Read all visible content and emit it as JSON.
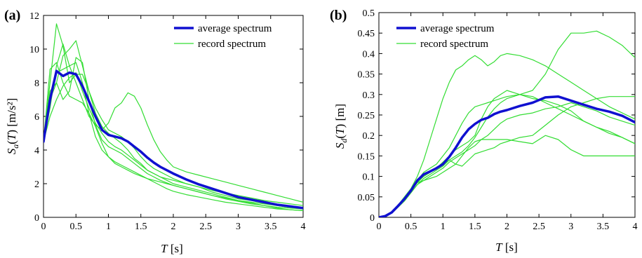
{
  "colors": {
    "average": "#1010d0",
    "record": "#33dd33",
    "axis": "#000000"
  },
  "chart_data": [
    {
      "type": "line",
      "panel_label": "(a)",
      "xlabel": "T [s]",
      "ylabel": "Sa(T) [m/s²]",
      "xlim": [
        0,
        4
      ],
      "ylim": [
        0,
        12
      ],
      "xticks": [
        "0",
        "0.5",
        "1",
        "1.5",
        "2",
        "2.5",
        "3",
        "3.5",
        "4"
      ],
      "yticks": [
        "0",
        "2",
        "4",
        "6",
        "8",
        "10",
        "12"
      ],
      "grid": false,
      "legend": {
        "placement": "top-right",
        "average_label": "average spectrum",
        "record_label": "record spectrum"
      },
      "x": [
        0,
        0.1,
        0.2,
        0.3,
        0.4,
        0.5,
        0.6,
        0.7,
        0.8,
        0.9,
        1.0,
        1.1,
        1.2,
        1.3,
        1.4,
        1.5,
        1.6,
        1.7,
        1.8,
        1.9,
        2.0,
        2.2,
        2.4,
        2.6,
        2.8,
        3.0,
        3.2,
        3.4,
        3.6,
        3.8,
        4.0
      ],
      "series": [
        {
          "name": "average spectrum",
          "role": "average",
          "values": [
            4.5,
            7.0,
            8.7,
            8.4,
            8.6,
            8.5,
            7.8,
            6.9,
            6.0,
            5.2,
            4.9,
            4.8,
            4.7,
            4.5,
            4.2,
            3.9,
            3.55,
            3.25,
            3.0,
            2.8,
            2.6,
            2.25,
            1.95,
            1.7,
            1.45,
            1.2,
            1.05,
            0.9,
            0.75,
            0.65,
            0.55
          ]
        },
        {
          "name": "record spectrum",
          "role": "record",
          "values": [
            4.5,
            8.0,
            11.5,
            10.2,
            8.0,
            8.5,
            8.5,
            7.5,
            6.2,
            5.4,
            5.0,
            4.7,
            4.4,
            4.0,
            3.5,
            3.2,
            2.8,
            2.6,
            2.4,
            2.2,
            2.0,
            1.8,
            1.6,
            1.4,
            1.2,
            1.0,
            0.9,
            0.8,
            0.7,
            0.6,
            0.5
          ]
        },
        {
          "name": "record spectrum",
          "role": "record",
          "values": [
            4.5,
            6.5,
            9.0,
            10.3,
            9.0,
            8.0,
            7.0,
            6.0,
            5.5,
            5.2,
            5.6,
            6.5,
            6.8,
            7.4,
            7.2,
            6.5,
            5.5,
            4.6,
            3.9,
            3.4,
            3.0,
            2.7,
            2.5,
            2.3,
            2.1,
            1.9,
            1.7,
            1.5,
            1.3,
            1.1,
            0.9
          ]
        },
        {
          "name": "record spectrum",
          "role": "record",
          "values": [
            4.5,
            7.0,
            8.0,
            9.6,
            10.0,
            10.5,
            9.0,
            7.5,
            6.5,
            5.8,
            5.2,
            5.0,
            4.8,
            4.5,
            4.1,
            3.6,
            3.2,
            2.9,
            2.7,
            2.5,
            2.3,
            2.0,
            1.8,
            1.5,
            1.3,
            1.1,
            1.0,
            0.85,
            0.7,
            0.6,
            0.5
          ]
        },
        {
          "name": "record spectrum",
          "role": "record",
          "values": [
            4.5,
            7.5,
            8.0,
            7.0,
            7.5,
            9.5,
            9.2,
            7.0,
            5.5,
            4.6,
            4.2,
            4.0,
            3.8,
            3.5,
            3.2,
            2.9,
            2.6,
            2.4,
            2.2,
            2.05,
            1.9,
            1.7,
            1.5,
            1.3,
            1.1,
            0.95,
            0.8,
            0.7,
            0.6,
            0.55,
            0.5
          ]
        },
        {
          "name": "record spectrum",
          "role": "record",
          "values": [
            4.5,
            8.8,
            9.2,
            8.0,
            7.2,
            7.0,
            6.8,
            6.2,
            5.4,
            4.4,
            3.6,
            3.2,
            3.0,
            2.8,
            2.6,
            2.45,
            2.3,
            2.2,
            2.1,
            2.0,
            1.9,
            1.7,
            1.5,
            1.3,
            1.15,
            1.0,
            0.85,
            0.7,
            0.55,
            0.45,
            0.4
          ]
        },
        {
          "name": "record spectrum",
          "role": "record",
          "values": [
            4.5,
            7.0,
            8.6,
            8.8,
            9.0,
            9.2,
            8.0,
            6.2,
            4.8,
            4.0,
            3.6,
            3.3,
            3.1,
            2.9,
            2.7,
            2.5,
            2.3,
            2.1,
            1.9,
            1.7,
            1.55,
            1.35,
            1.2,
            1.05,
            0.9,
            0.8,
            0.7,
            0.6,
            0.5,
            0.45,
            0.4
          ]
        },
        {
          "name": "record spectrum",
          "role": "record",
          "values": [
            4.5,
            6.0,
            7.0,
            7.8,
            8.3,
            8.6,
            7.5,
            6.5,
            5.6,
            5.0,
            4.5,
            4.2,
            4.0,
            3.7,
            3.4,
            3.1,
            2.8,
            2.6,
            2.4,
            2.3,
            2.2,
            2.0,
            1.8,
            1.6,
            1.45,
            1.3,
            1.15,
            1.0,
            0.9,
            0.8,
            0.7
          ]
        }
      ]
    },
    {
      "type": "line",
      "panel_label": "(b)",
      "xlabel": "T [s]",
      "ylabel": "Sd(T) [m]",
      "xlim": [
        0,
        4
      ],
      "ylim": [
        0,
        0.5
      ],
      "xticks": [
        "0",
        "0.5",
        "1",
        "1.5",
        "2",
        "2.5",
        "3",
        "3.5",
        "4"
      ],
      "yticks": [
        "0",
        "0.05",
        "0.1",
        "0.15",
        "0.2",
        "0.25",
        "0.3",
        "0.35",
        "0.4",
        "0.45",
        "0.5"
      ],
      "grid": false,
      "legend": {
        "placement": "top-left",
        "average_label": "average spectrum",
        "record_label": "record spectrum"
      },
      "x": [
        0,
        0.1,
        0.2,
        0.3,
        0.4,
        0.5,
        0.6,
        0.7,
        0.8,
        0.9,
        1.0,
        1.1,
        1.2,
        1.3,
        1.4,
        1.5,
        1.6,
        1.7,
        1.8,
        1.9,
        2.0,
        2.2,
        2.4,
        2.6,
        2.8,
        3.0,
        3.2,
        3.4,
        3.6,
        3.8,
        4.0
      ],
      "series": [
        {
          "name": "average spectrum",
          "role": "average",
          "values": [
            0,
            0.003,
            0.012,
            0.028,
            0.045,
            0.065,
            0.09,
            0.105,
            0.112,
            0.12,
            0.13,
            0.148,
            0.17,
            0.195,
            0.215,
            0.228,
            0.238,
            0.243,
            0.252,
            0.258,
            0.262,
            0.272,
            0.28,
            0.293,
            0.295,
            0.285,
            0.275,
            0.265,
            0.258,
            0.248,
            0.232
          ]
        },
        {
          "name": "record spectrum",
          "role": "record",
          "values": [
            0,
            0.003,
            0.012,
            0.03,
            0.05,
            0.07,
            0.1,
            0.14,
            0.19,
            0.24,
            0.29,
            0.33,
            0.36,
            0.37,
            0.385,
            0.395,
            0.385,
            0.37,
            0.38,
            0.395,
            0.4,
            0.395,
            0.385,
            0.37,
            0.35,
            0.33,
            0.31,
            0.29,
            0.27,
            0.255,
            0.24
          ]
        },
        {
          "name": "record spectrum",
          "role": "record",
          "values": [
            0,
            0.003,
            0.012,
            0.028,
            0.045,
            0.065,
            0.085,
            0.1,
            0.11,
            0.12,
            0.135,
            0.15,
            0.165,
            0.175,
            0.185,
            0.2,
            0.24,
            0.27,
            0.29,
            0.3,
            0.31,
            0.3,
            0.295,
            0.28,
            0.265,
            0.25,
            0.235,
            0.22,
            0.205,
            0.195,
            0.18
          ]
        },
        {
          "name": "record spectrum",
          "role": "record",
          "values": [
            0,
            0.003,
            0.01,
            0.025,
            0.04,
            0.06,
            0.08,
            0.095,
            0.105,
            0.115,
            0.125,
            0.14,
            0.15,
            0.16,
            0.175,
            0.195,
            0.22,
            0.245,
            0.265,
            0.28,
            0.29,
            0.3,
            0.31,
            0.35,
            0.41,
            0.45,
            0.45,
            0.455,
            0.44,
            0.42,
            0.39
          ]
        },
        {
          "name": "record spectrum",
          "role": "record",
          "values": [
            0,
            0.003,
            0.012,
            0.028,
            0.045,
            0.065,
            0.09,
            0.1,
            0.11,
            0.12,
            0.13,
            0.14,
            0.13,
            0.125,
            0.14,
            0.155,
            0.16,
            0.165,
            0.17,
            0.18,
            0.185,
            0.195,
            0.2,
            0.225,
            0.25,
            0.27,
            0.28,
            0.29,
            0.295,
            0.295,
            0.295
          ]
        },
        {
          "name": "record spectrum",
          "role": "record",
          "values": [
            0,
            0.003,
            0.012,
            0.028,
            0.045,
            0.065,
            0.085,
            0.09,
            0.095,
            0.1,
            0.11,
            0.12,
            0.13,
            0.15,
            0.17,
            0.185,
            0.19,
            0.19,
            0.19,
            0.19,
            0.19,
            0.185,
            0.18,
            0.2,
            0.19,
            0.165,
            0.15,
            0.15,
            0.15,
            0.15,
            0.15
          ]
        },
        {
          "name": "record spectrum",
          "role": "record",
          "values": [
            0,
            0.003,
            0.012,
            0.028,
            0.045,
            0.065,
            0.09,
            0.11,
            0.12,
            0.13,
            0.15,
            0.17,
            0.2,
            0.23,
            0.255,
            0.27,
            0.275,
            0.28,
            0.285,
            0.29,
            0.295,
            0.3,
            0.29,
            0.285,
            0.275,
            0.26,
            0.235,
            0.22,
            0.21,
            0.195,
            0.18
          ]
        },
        {
          "name": "record spectrum",
          "role": "record",
          "values": [
            0,
            0.003,
            0.01,
            0.025,
            0.04,
            0.06,
            0.08,
            0.09,
            0.1,
            0.11,
            0.12,
            0.135,
            0.145,
            0.155,
            0.165,
            0.175,
            0.19,
            0.2,
            0.215,
            0.23,
            0.24,
            0.25,
            0.255,
            0.265,
            0.27,
            0.28,
            0.27,
            0.26,
            0.245,
            0.235,
            0.225
          ]
        }
      ]
    }
  ]
}
